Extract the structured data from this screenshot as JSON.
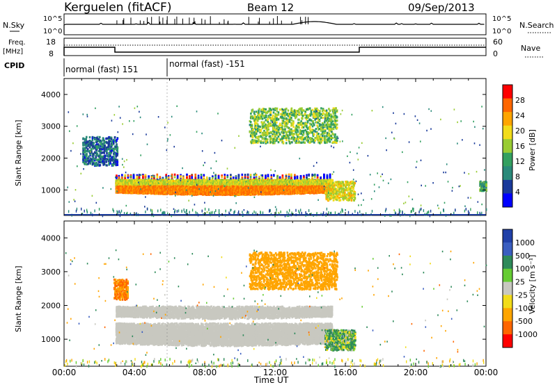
{
  "header": {
    "title": "Kerguelen (fitACF)",
    "beam": "Beam 12",
    "date": "09/Sep/2013"
  },
  "status_panels": {
    "nsky_label": "N.Sky",
    "nsearch_label": "N.Search",
    "freq_label_1": "Freq.",
    "freq_label_2": "[MHz]",
    "nave_label": "Nave",
    "cpid_label": "CPID",
    "nsky_ticks": [
      "10^5",
      "10^0"
    ],
    "nsearch_ticks": [
      "10^5",
      "10^0"
    ],
    "freq_ticks": [
      "18",
      "8"
    ],
    "nave_ticks": [
      "60",
      "0"
    ],
    "cpid_segments": [
      {
        "start_h": 0,
        "end_h": 6,
        "label": "normal (fast) 151"
      },
      {
        "start_h": 6,
        "end_h": 24,
        "label": "normal (fast) -151"
      }
    ]
  },
  "time_axis": {
    "label": "Time UT",
    "ticks": [
      "00:00",
      "04:00",
      "08:00",
      "12:00",
      "16:00",
      "20:00",
      "00:00"
    ],
    "tick_hours": [
      0,
      4,
      8,
      12,
      16,
      20,
      24
    ]
  },
  "power_colorbar": {
    "label": "Power [dB]",
    "ticks": [
      "28",
      "24",
      "20",
      "16",
      "12",
      "8",
      "4"
    ],
    "colors": [
      "#ff0000",
      "#ff6600",
      "#ffa500",
      "#f2dc1a",
      "#99cc33",
      "#33a060",
      "#2a8a7a",
      "#1a3a9a",
      "#0000ff"
    ]
  },
  "velocity_colorbar": {
    "label": "Velocity [m s⁻¹]",
    "ticks": [
      "1000",
      "500",
      "100",
      "25",
      "-25",
      "-100",
      "-500",
      "-1000"
    ],
    "colors": [
      "#2040a8",
      "#3a5ec0",
      "#2e8a5a",
      "#66cc33",
      "#c8c8c0",
      "#f2dc1a",
      "#ffa500",
      "#ff6600",
      "#ff0000"
    ]
  },
  "chart_data": [
    {
      "type": "heatmap",
      "title": "Power",
      "xlabel": "",
      "ylabel": "Slant Range [km]",
      "ylim": [
        200,
        4500
      ],
      "xlim_hours": [
        0,
        24
      ],
      "yticks": [
        1000,
        2000,
        3000,
        4000
      ],
      "features": [
        {
          "name": "main E/F echo band",
          "start_h": 2.9,
          "end_h": 15.2,
          "range_km": [
            900,
            1500
          ],
          "power_db": 24
        },
        {
          "name": "upper patchy scatter",
          "start_h": 1.0,
          "end_h": 3.0,
          "range_km": [
            1800,
            2700
          ],
          "power_db": 6
        },
        {
          "name": "late high-range scatter",
          "start_h": 10.5,
          "end_h": 15.5,
          "range_km": [
            2500,
            3600
          ],
          "power_db": 14
        },
        {
          "name": "post-noon echoes",
          "start_h": 14.8,
          "end_h": 16.5,
          "range_km": [
            700,
            1300
          ],
          "power_db": 18
        },
        {
          "name": "end-of-day echoes",
          "start_h": 23.6,
          "end_h": 24,
          "range_km": [
            1000,
            1300
          ],
          "power_db": 10
        }
      ]
    },
    {
      "type": "heatmap",
      "title": "Velocity",
      "xlabel": "Time UT",
      "ylabel": "Slant Range [km]",
      "ylim": [
        200,
        4500
      ],
      "xlim_hours": [
        0,
        24
      ],
      "yticks": [
        1000,
        2000,
        3000,
        4000
      ],
      "features": [
        {
          "name": "main ground-scatter band",
          "start_h": 2.9,
          "end_h": 15.2,
          "range_km": [
            900,
            1500
          ],
          "velocity_ms": 0
        },
        {
          "name": "early upper scatter",
          "start_h": 2.8,
          "end_h": 3.6,
          "range_km": [
            2200,
            2800
          ],
          "velocity_ms": -500
        },
        {
          "name": "late high-range scatter",
          "start_h": 10.5,
          "end_h": 15.5,
          "range_km": [
            2500,
            3600
          ],
          "velocity_ms": -300
        },
        {
          "name": "post-noon echoes",
          "start_h": 14.8,
          "end_h": 16.5,
          "range_km": [
            700,
            1300
          ],
          "velocity_ms": 100
        }
      ]
    }
  ]
}
